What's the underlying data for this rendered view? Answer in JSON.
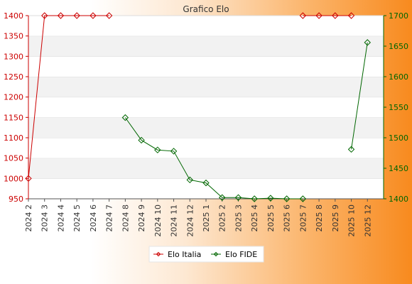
{
  "chart_data": {
    "type": "line",
    "title": "Grafico Elo",
    "categories": [
      "2024 2",
      "2024 3",
      "2024 4",
      "2024 5",
      "2024 6",
      "2024 7",
      "2024 8",
      "2024 9",
      "2024 10",
      "2024 11",
      "2024 12",
      "2025 1",
      "2025 2",
      "2025 3",
      "2025 4",
      "2025 5",
      "2025 6",
      "2025 7",
      "2025 8",
      "2025 9",
      "2025 10",
      "2025 12"
    ],
    "y_left": {
      "min": 950,
      "max": 1400,
      "ticks": [
        950,
        1000,
        1050,
        1100,
        1150,
        1200,
        1250,
        1300,
        1350,
        1400
      ]
    },
    "y_right": {
      "min": 1400,
      "max": 1700,
      "ticks": [
        1400,
        1450,
        1500,
        1550,
        1600,
        1650,
        1700
      ]
    },
    "series": [
      {
        "name": "Elo Italia",
        "axis": "left",
        "color": "#cc0000",
        "segments": [
          [
            [
              0,
              1000
            ],
            [
              1,
              1400
            ],
            [
              2,
              1400
            ],
            [
              3,
              1400
            ],
            [
              4,
              1400
            ],
            [
              5,
              1400
            ]
          ],
          [
            [
              17,
              1400
            ],
            [
              18,
              1400
            ],
            [
              19,
              1400
            ],
            [
              20,
              1400
            ]
          ]
        ]
      },
      {
        "name": "Elo FIDE",
        "axis": "right",
        "color": "#006600",
        "segments": [
          [
            [
              6,
              1533
            ],
            [
              7,
              1496
            ],
            [
              8,
              1480
            ],
            [
              9,
              1478
            ],
            [
              10,
              1431
            ],
            [
              11,
              1426
            ],
            [
              12,
              1402
            ],
            [
              13,
              1402
            ],
            [
              14,
              1400
            ],
            [
              15,
              1401
            ],
            [
              16,
              1400
            ],
            [
              17,
              1400
            ]
          ],
          [
            [
              20,
              1481
            ],
            [
              21,
              1656
            ]
          ]
        ]
      }
    ],
    "grid": "horizontal-bands",
    "legend_position": "bottom-center"
  }
}
